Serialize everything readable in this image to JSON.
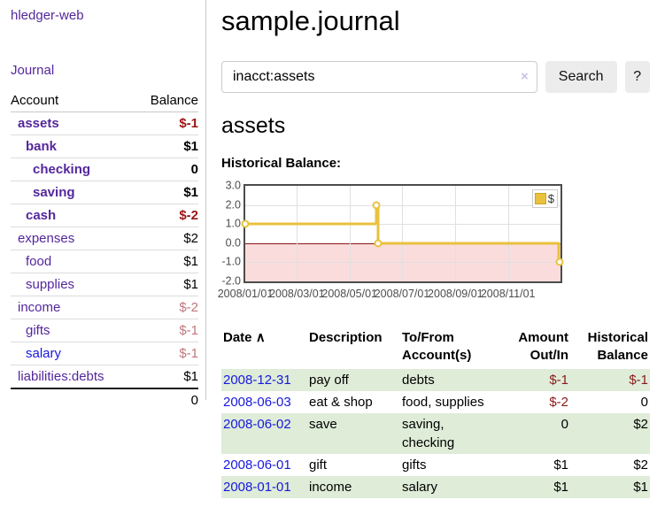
{
  "app": {
    "brand": "hledger-web",
    "nav_journal": "Journal"
  },
  "sidebar": {
    "col_account": "Account",
    "col_balance": "Balance",
    "accounts": [
      {
        "name": "assets",
        "balance": "$-1",
        "depth": 1,
        "bold": true,
        "neg": "strong"
      },
      {
        "name": "bank",
        "balance": "$1",
        "depth": 2,
        "bold": true
      },
      {
        "name": "checking",
        "balance": "0",
        "depth": 3,
        "bold": true
      },
      {
        "name": "saving",
        "balance": "$1",
        "depth": 3,
        "bold": true
      },
      {
        "name": "cash",
        "balance": "$-2",
        "depth": 2,
        "bold": true,
        "neg": "strong"
      },
      {
        "name": "expenses",
        "balance": "$2",
        "depth": 1
      },
      {
        "name": "food",
        "balance": "$1",
        "depth": 2
      },
      {
        "name": "supplies",
        "balance": "$1",
        "depth": 2
      },
      {
        "name": "income",
        "balance": "$-2",
        "depth": 1,
        "neg": "muted"
      },
      {
        "name": "gifts",
        "balance": "$-1",
        "depth": 2,
        "neg": "muted"
      },
      {
        "name": "salary",
        "balance": "$-1",
        "depth": 2,
        "neg": "muted",
        "link": "blue"
      },
      {
        "name": "liabilities:debts",
        "balance": "$1",
        "depth": 1
      }
    ],
    "total": "0"
  },
  "header": {
    "title": "sample.journal"
  },
  "search": {
    "value": "inacct:assets",
    "clear_icon": "×",
    "button": "Search",
    "help_button": "?"
  },
  "account_page": {
    "title": "assets",
    "chart_label": "Historical Balance:"
  },
  "chart_data": {
    "type": "line",
    "style": "step",
    "title": "Historical Balance:",
    "series": [
      {
        "name": "$",
        "color": "#e9c13d",
        "points": [
          [
            "2008-01-01",
            1
          ],
          [
            "2008-06-01",
            2
          ],
          [
            "2008-06-03",
            0
          ],
          [
            "2008-12-31",
            -1
          ]
        ]
      }
    ],
    "ylim": [
      -2.0,
      3.0
    ],
    "yticks": [
      "3.0",
      "2.0",
      "1.0",
      "0.0",
      "-1.0",
      "-2.0"
    ],
    "xlim": [
      "2008-01-01",
      "2009-01-01"
    ],
    "xticks": [
      "2008/01/01",
      "2008/03/01",
      "2008/05/01",
      "2008/07/01",
      "2008/09/01",
      "2008/11/01"
    ],
    "grid": true,
    "zero_line_color": "#8b1414",
    "negative_region_color": "#fbdcdc",
    "legend": {
      "label": "$",
      "position": "top-right"
    }
  },
  "register": {
    "headers": {
      "date": "Date",
      "sort_indicator": "∧",
      "description": "Description",
      "account": "To/From Account(s)",
      "amount": "Amount Out/In",
      "balance": "Historical Balance"
    },
    "rows": [
      {
        "date": "2008-12-31",
        "description": "pay off",
        "account": "debts",
        "amount": "$-1",
        "amount_neg": true,
        "balance": "$-1",
        "balance_neg": true
      },
      {
        "date": "2008-06-03",
        "description": "eat & shop",
        "account": "food, supplies",
        "amount": "$-2",
        "amount_neg": true,
        "balance": "0"
      },
      {
        "date": "2008-06-02",
        "description": "save",
        "account": "saving, checking",
        "amount": "0",
        "balance": "$2"
      },
      {
        "date": "2008-06-01",
        "description": "gift",
        "account": "gifts",
        "amount": "$1",
        "balance": "$2"
      },
      {
        "date": "2008-01-01",
        "description": "income",
        "account": "salary",
        "amount": "$1",
        "balance": "$1"
      }
    ]
  }
}
